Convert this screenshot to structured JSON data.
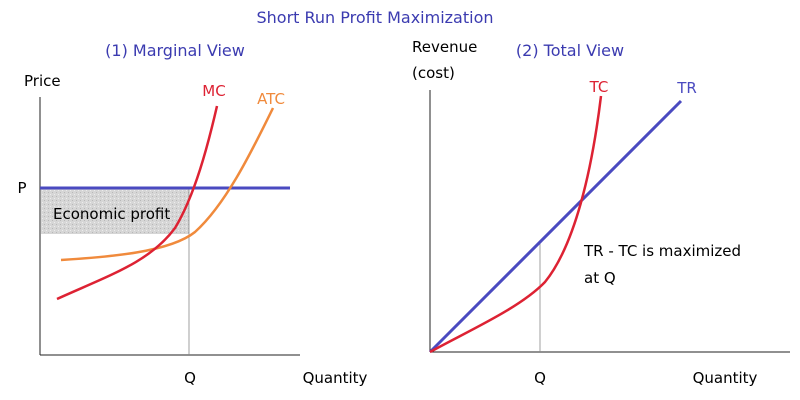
{
  "chart_data": {
    "title": "Short Run Profit Maximization",
    "panels": [
      {
        "type": "line",
        "subtitle": "(1) Marginal View",
        "ylabel": "Price",
        "xlabel": "Quantity",
        "y_tick_label": "P",
        "x_tick_label": "Q",
        "shaded_region_label": "Economic profit",
        "series": [
          {
            "name": "MC",
            "color": "#dd2233"
          },
          {
            "name": "ATC",
            "color": "#f08a3c"
          },
          {
            "name": "",
            "color": "#4a4ac0"
          }
        ]
      },
      {
        "type": "line",
        "subtitle": "(2) Total View",
        "ylabel_line1": "Revenue",
        "ylabel_line2": "(cost)",
        "xlabel": "Quantity",
        "x_tick_label": "Q",
        "annotation_line1": "TR - TC is maximized",
        "annotation_line2": "at Q",
        "series": [
          {
            "name": "TC",
            "color": "#dd2233"
          },
          {
            "name": "TR",
            "color": "#4a4ac0"
          }
        ]
      }
    ]
  }
}
